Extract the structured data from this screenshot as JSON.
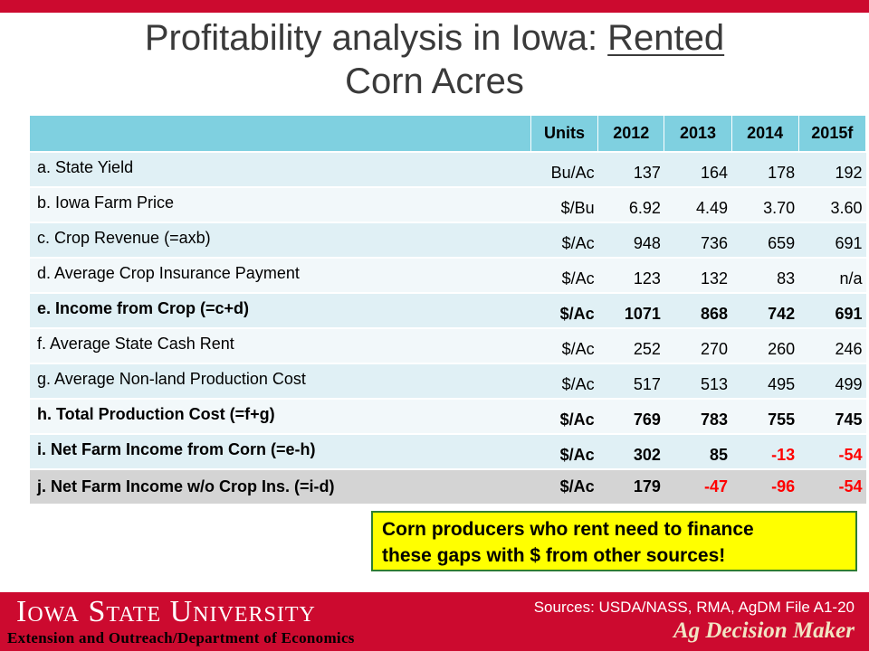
{
  "title": {
    "main": "Profitability analysis in Iowa: ",
    "underlined": "Rented",
    "line2": "Corn Acres"
  },
  "table": {
    "headers": [
      "",
      "Units",
      "2012",
      "2013",
      "2014",
      "2015f"
    ],
    "rows": [
      {
        "label": "a. State Yield",
        "units": "Bu/Ac",
        "v2012": "137",
        "v2013": "164",
        "v2014": "178",
        "v2015": "192"
      },
      {
        "label": "b. Iowa Farm Price",
        "units": "$/Bu",
        "v2012": "6.92",
        "v2013": "4.49",
        "v2014": "3.70",
        "v2015": "3.60"
      },
      {
        "label": "c. Crop Revenue (=axb)",
        "units": "$/Ac",
        "v2012": "948",
        "v2013": "736",
        "v2014": "659",
        "v2015": "691"
      },
      {
        "label": "d. Average Crop Insurance Payment",
        "units": "$/Ac",
        "v2012": "123",
        "v2013": "132",
        "v2014": "83",
        "v2015": "n/a"
      },
      {
        "label": "e. Income from Crop (=c+d)",
        "units": "$/Ac",
        "v2012": "1071",
        "v2013": "868",
        "v2014": "742",
        "v2015": "691"
      },
      {
        "label": "f. Average State Cash Rent",
        "units": "$/Ac",
        "v2012": "252",
        "v2013": "270",
        "v2014": "260",
        "v2015": "246"
      },
      {
        "label": "g. Average Non-land Production Cost",
        "units": "$/Ac",
        "v2012": "517",
        "v2013": "513",
        "v2014": "495",
        "v2015": "499"
      },
      {
        "label": "h. Total Production Cost (=f+g)",
        "units": "$/Ac",
        "v2012": "769",
        "v2013": "783",
        "v2014": "755",
        "v2015": "745"
      },
      {
        "label": "i. Net Farm Income from Corn (=e-h)",
        "units": "$/Ac",
        "v2012": "302",
        "v2013": "85",
        "v2014": "-13",
        "v2015": "-54"
      },
      {
        "label": "j. Net Farm Income w/o Crop Ins. (=i-d)",
        "units": "$/Ac",
        "v2012": "179",
        "v2013": "-47",
        "v2014": "-96",
        "v2015": "-54"
      }
    ]
  },
  "note": {
    "line1": "Corn producers who rent need to finance",
    "line2": "these gaps with $ from other sources!"
  },
  "footer": {
    "university": "Iowa State University",
    "department": "Extension and Outreach/Department  of Economics",
    "sources": "Sources: USDA/NASS,  RMA, AgDM File A1-20",
    "brand": "Ag Decision Maker"
  },
  "colors": {
    "brand_red": "#cc0a2f",
    "header_cyan": "#7fd0e0",
    "negative": "#ff0000",
    "note_bg": "#ffff00"
  }
}
